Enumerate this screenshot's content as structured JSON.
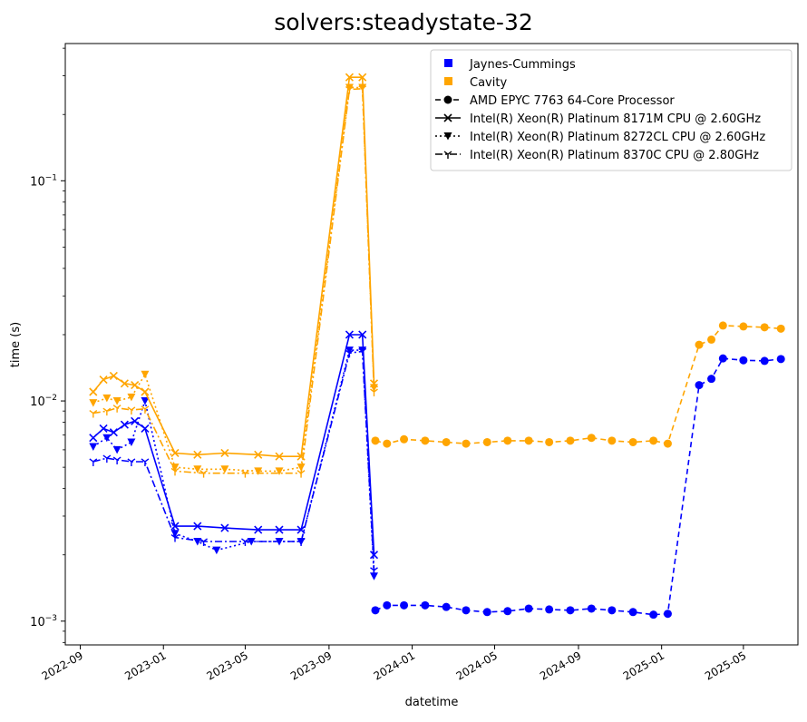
{
  "chart_data": {
    "type": "line",
    "title": "solvers:steadystate-32",
    "xlabel": "datetime",
    "ylabel": "time (s)",
    "yscale": "log",
    "xlim": [
      "2022-08-10",
      "2025-07-20"
    ],
    "ylim": [
      0.00078,
      0.42
    ],
    "x_ticks": [
      "2022-09",
      "2023-01",
      "2023-05",
      "2023-09",
      "2024-01",
      "2024-05",
      "2024-09",
      "2025-01",
      "2025-05"
    ],
    "y_ticks": [
      {
        "value": 0.001,
        "base": "10",
        "exp": "−3"
      },
      {
        "value": 0.01,
        "base": "10",
        "exp": "−2"
      },
      {
        "value": 0.1,
        "base": "10",
        "exp": "−1"
      }
    ],
    "grid": false,
    "legend": {
      "position": "top-right",
      "entries": [
        {
          "label": "Jaynes-Cummings",
          "kind": "color",
          "color": "#0000ff"
        },
        {
          "label": "Cavity",
          "kind": "color",
          "color": "#ffa500"
        },
        {
          "label": "AMD EPYC 7763 64-Core Processor",
          "kind": "cpu",
          "cpu": "amd"
        },
        {
          "label": "Intel(R) Xeon(R) Platinum 8171M CPU @ 2.60GHz",
          "kind": "cpu",
          "cpu": "8171m"
        },
        {
          "label": "Intel(R) Xeon(R) Platinum 8272CL CPU @ 2.60GHz",
          "kind": "cpu",
          "cpu": "8272cl"
        },
        {
          "label": "Intel(R) Xeon(R) Platinum 8370C CPU @ 2.80GHz",
          "kind": "cpu",
          "cpu": "8370c"
        }
      ]
    },
    "series": [
      {
        "name": "Jaynes-Cummings",
        "cpu": "8171m",
        "color": "#0000ff",
        "points": [
          [
            "2022-09-20",
            0.0068
          ],
          [
            "2022-10-05",
            0.0075
          ],
          [
            "2022-10-20",
            0.0072
          ],
          [
            "2022-11-05",
            0.0078
          ],
          [
            "2022-11-20",
            0.0081
          ],
          [
            "2022-12-05",
            0.0075
          ],
          [
            "2023-01-18",
            0.0027
          ],
          [
            "2023-02-20",
            0.0027
          ],
          [
            "2023-04-01",
            0.00265
          ],
          [
            "2023-05-20",
            0.0026
          ],
          [
            "2023-06-20",
            0.0026
          ],
          [
            "2023-07-22",
            0.0026
          ],
          [
            "2023-10-01",
            0.02
          ],
          [
            "2023-10-20",
            0.02
          ],
          [
            "2023-11-06",
            0.002
          ]
        ]
      },
      {
        "name": "Jaynes-Cummings",
        "cpu": "8272cl",
        "color": "#0000ff",
        "points": [
          [
            "2022-09-20",
            0.0062
          ],
          [
            "2022-10-10",
            0.0068
          ],
          [
            "2022-10-25",
            0.006
          ],
          [
            "2022-11-15",
            0.0065
          ],
          [
            "2022-12-05",
            0.01
          ],
          [
            "2023-01-18",
            0.0025
          ],
          [
            "2023-02-20",
            0.0023
          ],
          [
            "2023-03-20",
            0.0021
          ],
          [
            "2023-05-10",
            0.0023
          ],
          [
            "2023-06-20",
            0.0023
          ],
          [
            "2023-07-22",
            0.0023
          ],
          [
            "2023-10-01",
            0.017
          ],
          [
            "2023-10-20",
            0.017
          ],
          [
            "2023-11-06",
            0.0016
          ]
        ]
      },
      {
        "name": "Jaynes-Cummings",
        "cpu": "8370c",
        "color": "#0000ff",
        "points": [
          [
            "2022-09-20",
            0.0053
          ],
          [
            "2022-10-10",
            0.0055
          ],
          [
            "2022-10-25",
            0.0054
          ],
          [
            "2022-11-15",
            0.0053
          ],
          [
            "2022-12-05",
            0.0053
          ],
          [
            "2023-01-18",
            0.0024
          ],
          [
            "2023-03-01",
            0.0023
          ],
          [
            "2023-05-01",
            0.0023
          ],
          [
            "2023-07-22",
            0.0023
          ],
          [
            "2023-10-01",
            0.0165
          ],
          [
            "2023-10-20",
            0.0168
          ],
          [
            "2023-11-06",
            0.0017
          ]
        ]
      },
      {
        "name": "Jaynes-Cummings",
        "cpu": "amd",
        "color": "#0000ff",
        "points": [
          [
            "2023-11-08",
            0.00112
          ],
          [
            "2023-11-25",
            0.00118
          ],
          [
            "2023-12-20",
            0.00118
          ],
          [
            "2024-01-20",
            0.00118
          ],
          [
            "2024-02-20",
            0.00116
          ],
          [
            "2024-03-20",
            0.00112
          ],
          [
            "2024-04-20",
            0.0011
          ],
          [
            "2024-05-20",
            0.00111
          ],
          [
            "2024-06-20",
            0.00114
          ],
          [
            "2024-07-20",
            0.00113
          ],
          [
            "2024-08-20",
            0.00112
          ],
          [
            "2024-09-20",
            0.00114
          ],
          [
            "2024-10-20",
            0.00112
          ],
          [
            "2024-11-20",
            0.0011
          ],
          [
            "2024-12-20",
            0.00107
          ],
          [
            "2025-01-10",
            0.00108
          ],
          [
            "2025-02-25",
            0.0118
          ],
          [
            "2025-03-15",
            0.0126
          ],
          [
            "2025-04-01",
            0.0156
          ],
          [
            "2025-05-01",
            0.0153
          ],
          [
            "2025-06-01",
            0.0152
          ],
          [
            "2025-06-25",
            0.0155
          ]
        ]
      },
      {
        "name": "Cavity",
        "cpu": "8171m",
        "color": "#ffa500",
        "points": [
          [
            "2022-09-20",
            0.011
          ],
          [
            "2022-10-05",
            0.0125
          ],
          [
            "2022-10-20",
            0.013
          ],
          [
            "2022-11-05",
            0.012
          ],
          [
            "2022-11-20",
            0.0118
          ],
          [
            "2022-12-05",
            0.011
          ],
          [
            "2023-01-18",
            0.0058
          ],
          [
            "2023-02-20",
            0.0057
          ],
          [
            "2023-04-01",
            0.0058
          ],
          [
            "2023-05-20",
            0.0057
          ],
          [
            "2023-06-20",
            0.0056
          ],
          [
            "2023-07-22",
            0.0056
          ],
          [
            "2023-10-01",
            0.295
          ],
          [
            "2023-10-20",
            0.295
          ],
          [
            "2023-11-06",
            0.012
          ]
        ]
      },
      {
        "name": "Cavity",
        "cpu": "8272cl",
        "color": "#ffa500",
        "points": [
          [
            "2022-09-20",
            0.0098
          ],
          [
            "2022-10-10",
            0.0103
          ],
          [
            "2022-10-25",
            0.01
          ],
          [
            "2022-11-15",
            0.0104
          ],
          [
            "2022-12-05",
            0.0132
          ],
          [
            "2023-01-18",
            0.005
          ],
          [
            "2023-02-20",
            0.0049
          ],
          [
            "2023-04-01",
            0.0049
          ],
          [
            "2023-05-20",
            0.0048
          ],
          [
            "2023-06-20",
            0.0048
          ],
          [
            "2023-07-22",
            0.005
          ],
          [
            "2023-10-01",
            0.265
          ],
          [
            "2023-10-20",
            0.265
          ],
          [
            "2023-11-06",
            0.0115
          ]
        ]
      },
      {
        "name": "Cavity",
        "cpu": "8370c",
        "color": "#ffa500",
        "points": [
          [
            "2022-09-20",
            0.0088
          ],
          [
            "2022-10-10",
            0.009
          ],
          [
            "2022-10-25",
            0.0093
          ],
          [
            "2022-11-15",
            0.0091
          ],
          [
            "2022-12-05",
            0.0092
          ],
          [
            "2023-01-18",
            0.0048
          ],
          [
            "2023-03-01",
            0.0047
          ],
          [
            "2023-05-01",
            0.0047
          ],
          [
            "2023-07-22",
            0.0047
          ],
          [
            "2023-10-01",
            0.26
          ],
          [
            "2023-10-20",
            0.262
          ],
          [
            "2023-11-06",
            0.011
          ]
        ]
      },
      {
        "name": "Cavity",
        "cpu": "amd",
        "color": "#ffa500",
        "points": [
          [
            "2023-11-08",
            0.0066
          ],
          [
            "2023-11-25",
            0.0064
          ],
          [
            "2023-12-20",
            0.0067
          ],
          [
            "2024-01-20",
            0.0066
          ],
          [
            "2024-02-20",
            0.0065
          ],
          [
            "2024-03-20",
            0.0064
          ],
          [
            "2024-04-20",
            0.0065
          ],
          [
            "2024-05-20",
            0.0066
          ],
          [
            "2024-06-20",
            0.0066
          ],
          [
            "2024-07-20",
            0.0065
          ],
          [
            "2024-08-20",
            0.0066
          ],
          [
            "2024-09-20",
            0.0068
          ],
          [
            "2024-10-20",
            0.0066
          ],
          [
            "2024-11-20",
            0.0065
          ],
          [
            "2024-12-20",
            0.0066
          ],
          [
            "2025-01-10",
            0.0064
          ],
          [
            "2025-02-25",
            0.018
          ],
          [
            "2025-03-15",
            0.019
          ],
          [
            "2025-04-01",
            0.022
          ],
          [
            "2025-05-01",
            0.0218
          ],
          [
            "2025-06-01",
            0.0216
          ],
          [
            "2025-06-25",
            0.0213
          ]
        ]
      }
    ]
  }
}
